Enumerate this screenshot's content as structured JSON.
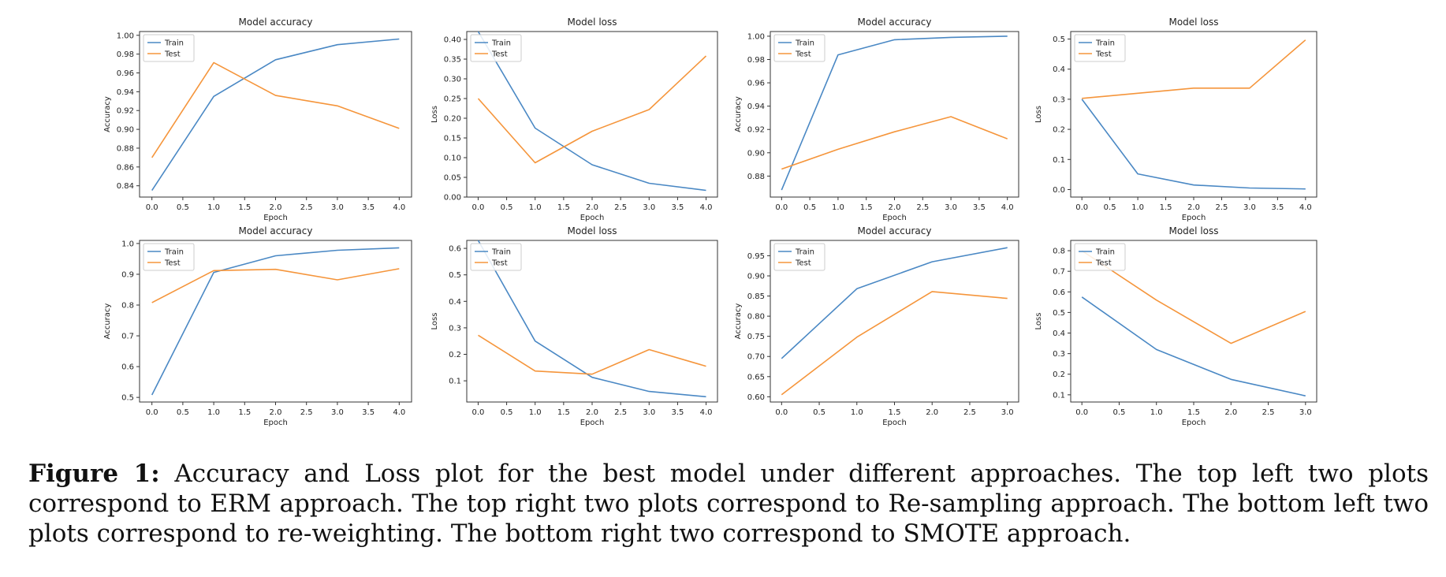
{
  "chart_data": [
    {
      "type": "line",
      "title": "Model accuracy",
      "xlabel": "Epoch",
      "ylabel": "Accuracy",
      "xlim": [
        -0.2,
        4.2
      ],
      "ylim": [
        0.828,
        1.004
      ],
      "xticks": [
        "0.0",
        "0.5",
        "1.0",
        "1.5",
        "2.0",
        "2.5",
        "3.0",
        "3.5",
        "4.0"
      ],
      "yticks": [
        "0.84",
        "0.86",
        "0.88",
        "0.90",
        "0.92",
        "0.94",
        "0.96",
        "0.98",
        "1.00"
      ],
      "legend": "top-left",
      "series": [
        {
          "name": "Train",
          "color": "#4a88c4",
          "x": [
            0,
            1,
            2,
            3,
            4
          ],
          "y": [
            0.835,
            0.935,
            0.974,
            0.99,
            0.996
          ]
        },
        {
          "name": "Test",
          "color": "#f5953b",
          "x": [
            0,
            1,
            2,
            3,
            4
          ],
          "y": [
            0.87,
            0.971,
            0.936,
            0.925,
            0.901
          ]
        }
      ]
    },
    {
      "type": "line",
      "title": "Model loss",
      "xlabel": "Epoch",
      "ylabel": "Loss",
      "xlim": [
        -0.2,
        4.2
      ],
      "ylim": [
        0,
        0.42
      ],
      "xticks": [
        "0.0",
        "0.5",
        "1.0",
        "1.5",
        "2.0",
        "2.5",
        "3.0",
        "3.5",
        "4.0"
      ],
      "yticks": [
        "0.00",
        "0.05",
        "0.10",
        "0.15",
        "0.20",
        "0.25",
        "0.30",
        "0.35",
        "0.40"
      ],
      "legend": "top-left",
      "series": [
        {
          "name": "Train",
          "color": "#4a88c4",
          "x": [
            0,
            1,
            2,
            3,
            4
          ],
          "y": [
            0.42,
            0.175,
            0.082,
            0.035,
            0.017
          ]
        },
        {
          "name": "Test",
          "color": "#f5953b",
          "x": [
            0,
            1,
            2,
            3,
            4
          ],
          "y": [
            0.25,
            0.087,
            0.167,
            0.222,
            0.358
          ]
        }
      ]
    },
    {
      "type": "line",
      "title": "Model accuracy",
      "xlabel": "Epoch",
      "ylabel": "Accuracy",
      "xlim": [
        -0.2,
        4.2
      ],
      "ylim": [
        0.862,
        1.004
      ],
      "xticks": [
        "0.0",
        "0.5",
        "1.0",
        "1.5",
        "2.0",
        "2.5",
        "3.0",
        "3.5",
        "4.0"
      ],
      "yticks": [
        "0.88",
        "0.90",
        "0.92",
        "0.94",
        "0.96",
        "0.98",
        "1.00"
      ],
      "legend": "top-left",
      "series": [
        {
          "name": "Train",
          "color": "#4a88c4",
          "x": [
            0,
            1,
            2,
            3,
            4
          ],
          "y": [
            0.868,
            0.984,
            0.997,
            0.999,
            1.0
          ]
        },
        {
          "name": "Test",
          "color": "#f5953b",
          "x": [
            0,
            1,
            2,
            3,
            4
          ],
          "y": [
            0.886,
            0.903,
            0.918,
            0.931,
            0.912
          ]
        }
      ]
    },
    {
      "type": "line",
      "title": "Model loss",
      "xlabel": "Epoch",
      "ylabel": "Loss",
      "xlim": [
        -0.2,
        4.2
      ],
      "ylim": [
        -0.025,
        0.525
      ],
      "xticks": [
        "0.0",
        "0.5",
        "1.0",
        "1.5",
        "2.0",
        "2.5",
        "3.0",
        "3.5",
        "4.0"
      ],
      "yticks": [
        "0.0",
        "0.1",
        "0.2",
        "0.3",
        "0.4",
        "0.5"
      ],
      "legend": "top-left",
      "series": [
        {
          "name": "Train",
          "color": "#4a88c4",
          "x": [
            0,
            1,
            2,
            3,
            4
          ],
          "y": [
            0.3,
            0.052,
            0.015,
            0.005,
            0.002
          ]
        },
        {
          "name": "Test",
          "color": "#f5953b",
          "x": [
            0,
            1,
            2,
            3,
            4
          ],
          "y": [
            0.303,
            0.32,
            0.337,
            0.337,
            0.497
          ]
        }
      ]
    },
    {
      "type": "line",
      "title": "Model accuracy",
      "xlabel": "Epoch",
      "ylabel": "Accuracy",
      "xlim": [
        -0.2,
        4.2
      ],
      "ylim": [
        0.485,
        1.01
      ],
      "xticks": [
        "0.0",
        "0.5",
        "1.0",
        "1.5",
        "2.0",
        "2.5",
        "3.0",
        "3.5",
        "4.0"
      ],
      "yticks": [
        "0.5",
        "0.6",
        "0.7",
        "0.8",
        "0.9",
        "1.0"
      ],
      "legend": "top-left",
      "series": [
        {
          "name": "Train",
          "color": "#4a88c4",
          "x": [
            0,
            1,
            2,
            3,
            4
          ],
          "y": [
            0.508,
            0.906,
            0.96,
            0.978,
            0.986
          ]
        },
        {
          "name": "Test",
          "color": "#f5953b",
          "x": [
            0,
            1,
            2,
            3,
            4
          ],
          "y": [
            0.808,
            0.912,
            0.916,
            0.882,
            0.918
          ]
        }
      ]
    },
    {
      "type": "line",
      "title": "Model loss",
      "xlabel": "Epoch",
      "ylabel": "Loss",
      "xlim": [
        -0.2,
        4.2
      ],
      "ylim": [
        0.02,
        0.63
      ],
      "xticks": [
        "0.0",
        "0.5",
        "1.0",
        "1.5",
        "2.0",
        "2.5",
        "3.0",
        "3.5",
        "4.0"
      ],
      "yticks": [
        "0.1",
        "0.2",
        "0.3",
        "0.4",
        "0.5",
        "0.6"
      ],
      "legend": "top-left",
      "series": [
        {
          "name": "Train",
          "color": "#4a88c4",
          "x": [
            0,
            1,
            2,
            3,
            4
          ],
          "y": [
            0.63,
            0.25,
            0.113,
            0.06,
            0.04
          ]
        },
        {
          "name": "Test",
          "color": "#f5953b",
          "x": [
            0,
            1,
            2,
            3,
            4
          ],
          "y": [
            0.272,
            0.137,
            0.125,
            0.218,
            0.155
          ]
        }
      ]
    },
    {
      "type": "line",
      "title": "Model accuracy",
      "xlabel": "Epoch",
      "ylabel": "Accuracy",
      "xlim": [
        -0.15,
        3.15
      ],
      "ylim": [
        0.587,
        0.988
      ],
      "xticks": [
        "0.0",
        "0.5",
        "1.0",
        "1.5",
        "2.0",
        "2.5",
        "3.0"
      ],
      "yticks": [
        "0.60",
        "0.65",
        "0.70",
        "0.75",
        "0.80",
        "0.85",
        "0.90",
        "0.95"
      ],
      "legend": "top-left",
      "series": [
        {
          "name": "Train",
          "color": "#4a88c4",
          "x": [
            0,
            1,
            2,
            3
          ],
          "y": [
            0.695,
            0.868,
            0.935,
            0.97
          ]
        },
        {
          "name": "Test",
          "color": "#f5953b",
          "x": [
            0,
            1,
            2,
            3
          ],
          "y": [
            0.605,
            0.748,
            0.861,
            0.844
          ]
        }
      ]
    },
    {
      "type": "line",
      "title": "Model loss",
      "xlabel": "Epoch",
      "ylabel": "Loss",
      "xlim": [
        -0.15,
        3.15
      ],
      "ylim": [
        0.065,
        0.85
      ],
      "xticks": [
        "0.0",
        "0.5",
        "1.0",
        "1.5",
        "2.0",
        "2.5",
        "3.0"
      ],
      "yticks": [
        "0.1",
        "0.2",
        "0.3",
        "0.4",
        "0.5",
        "0.6",
        "0.7",
        "0.8"
      ],
      "legend": "top-left",
      "series": [
        {
          "name": "Train",
          "color": "#4a88c4",
          "x": [
            0,
            1,
            2,
            3
          ],
          "y": [
            0.575,
            0.32,
            0.175,
            0.095
          ]
        },
        {
          "name": "Test",
          "color": "#f5953b",
          "x": [
            0,
            1,
            2,
            3
          ],
          "y": [
            0.8,
            0.56,
            0.35,
            0.505
          ]
        }
      ]
    }
  ],
  "caption": {
    "label": "Figure 1:",
    "text": "Accuracy and Loss plot for the best model under different approaches. The top left two plots correspond to ERM approach. The top right two plots correspond to Re-sampling approach. The bottom left two plots correspond to re-weighting. The bottom right two correspond to SMOTE approach."
  }
}
